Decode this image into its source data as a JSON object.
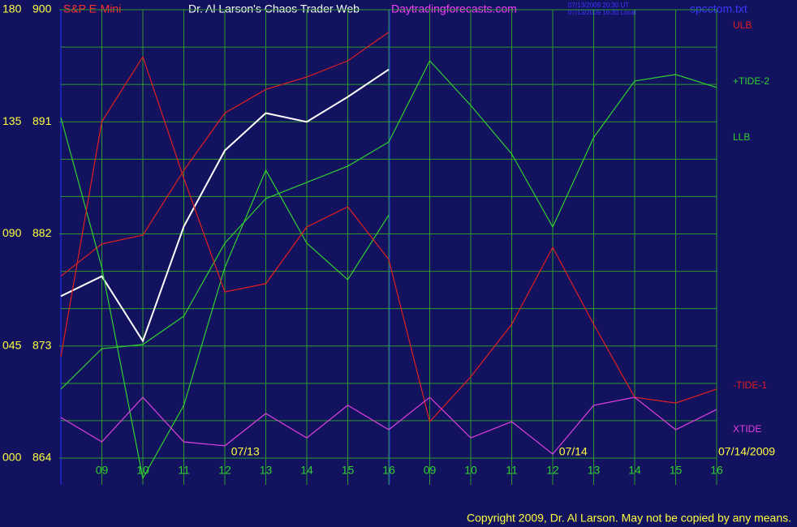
{
  "chart_data": {
    "type": "line",
    "instrument": "S&P E-Mini",
    "title": "Dr. Al Larson's Chaos Trader Web",
    "site": "Daytradingforecasts.com",
    "timestamps": [
      "07/13/2009 20:30 UT",
      "07/13/2009 16:30 Local"
    ],
    "file": "spcctom.txt",
    "copyright": "Copyright 2009, Dr. Al Larson. May not be copied by any means.",
    "annotations": [
      {
        "x": 4.5,
        "text": "07/13"
      },
      {
        "x": 12.5,
        "text": "07/14"
      },
      {
        "x": 16,
        "text": "07/14/2009"
      }
    ],
    "x": [
      0,
      1,
      2,
      3,
      4,
      5,
      6,
      7,
      8,
      9,
      10,
      11,
      12,
      13,
      14,
      15,
      16
    ],
    "xlim": [
      0,
      16
    ],
    "xticks": [
      {
        "value": 1,
        "label": "09"
      },
      {
        "value": 2,
        "label": "10"
      },
      {
        "value": 3,
        "label": "11"
      },
      {
        "value": 4,
        "label": "12"
      },
      {
        "value": 5,
        "label": "13"
      },
      {
        "value": 6,
        "label": "14"
      },
      {
        "value": 7,
        "label": "15"
      },
      {
        "value": 8,
        "label": "16"
      },
      {
        "value": 9,
        "label": "09"
      },
      {
        "value": 10,
        "label": "10"
      },
      {
        "value": 11,
        "label": "11"
      },
      {
        "value": 12,
        "label": "12"
      },
      {
        "value": 13,
        "label": "13"
      },
      {
        "value": 14,
        "label": "14"
      },
      {
        "value": 15,
        "label": "15"
      },
      {
        "value": 16,
        "label": "16"
      }
    ],
    "ylim": [
      864,
      900
    ],
    "yticks": [
      864,
      873,
      882,
      891,
      900
    ],
    "y2lim": [
      0,
      180
    ],
    "y2ticks": [
      {
        "value": 0,
        "label": "000"
      },
      {
        "value": 45,
        "label": "045"
      },
      {
        "value": 90,
        "label": "090"
      },
      {
        "value": 135,
        "label": "135"
      },
      {
        "value": 180,
        "label": "180"
      }
    ],
    "grid": true,
    "series": [
      {
        "color": "#ffffff",
        "values": [
          877.0,
          878.6,
          873.4,
          882.6,
          888.7,
          891.7,
          891.0,
          893.0,
          895.2,
          null,
          null,
          null,
          null,
          null,
          null,
          null,
          null
        ]
      },
      {
        "name": "ULB",
        "color": "#e02020",
        "values": [
          878.6,
          881.2,
          881.9,
          887.1,
          891.7,
          893.6,
          894.6,
          895.9,
          898.2,
          null,
          null,
          null,
          null,
          null,
          null,
          null,
          null
        ]
      },
      {
        "name": "+TIDE-2",
        "color": "#30d030",
        "axis": "y2",
        "values": [
          27.7,
          43.9,
          45.6,
          57.0,
          86.3,
          104.2,
          110.7,
          117.2,
          126.9,
          159.5,
          141.6,
          122.1,
          92.8,
          128.7,
          151.4,
          154.0,
          148.8
        ]
      },
      {
        "name": "LLB",
        "color": "#30d030",
        "axis": "y2",
        "values": [
          136.7,
          76.5,
          -8.1,
          21.2,
          76.5,
          115.6,
          86.3,
          71.6,
          97.6,
          null,
          null,
          null,
          null,
          null,
          null,
          null,
          null
        ]
      },
      {
        "name": "-TIDE-1",
        "color": "#e02020",
        "axis": "y2",
        "values": [
          40.7,
          135.1,
          161.1,
          112.3,
          66.7,
          70.0,
          92.8,
          100.9,
          79.7,
          14.6,
          32.6,
          53.7,
          84.6,
          53.7,
          24.4,
          22.1,
          27.7
        ]
      },
      {
        "name": "XTIDE",
        "color": "#e040e0",
        "axis": "y2",
        "values": [
          16.3,
          6.5,
          24.4,
          6.5,
          4.9,
          17.9,
          8.1,
          21.2,
          11.4,
          24.4,
          8.1,
          14.6,
          1.6,
          21.2,
          24.4,
          11.4,
          19.5
        ]
      }
    ]
  }
}
